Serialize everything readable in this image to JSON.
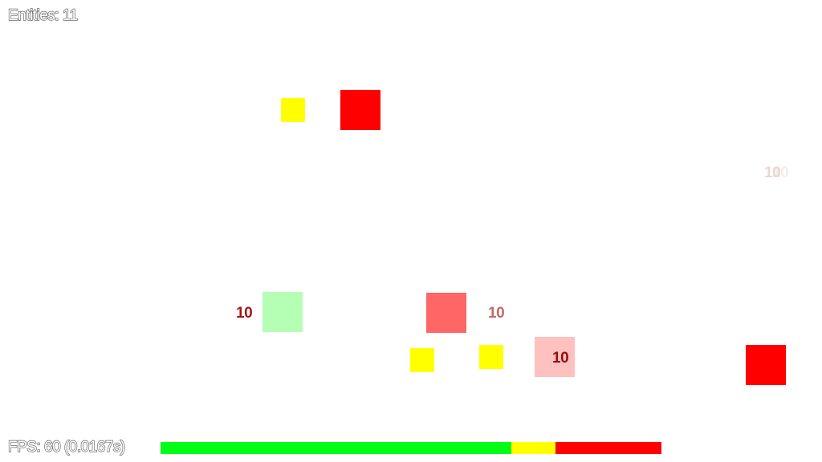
{
  "hud": {
    "entities_text": "Entities: 11",
    "fps_text": "FPS: 60 (0.0167s)"
  },
  "colors": {
    "enemy_red": "#ff0000",
    "pickup_yellow": "#ffff00",
    "hit_red": "#ff6666",
    "hit_pink": "#ffc0c0",
    "heal_green": "#b4ffb4",
    "frame_good": "#00ff17",
    "frame_warn": "#ffff00",
    "frame_bad": "#ff0000"
  },
  "damage_numbers": {
    "left": "10",
    "middle": "10",
    "lower": "10",
    "fading_a": "10",
    "fading_b": "10"
  }
}
